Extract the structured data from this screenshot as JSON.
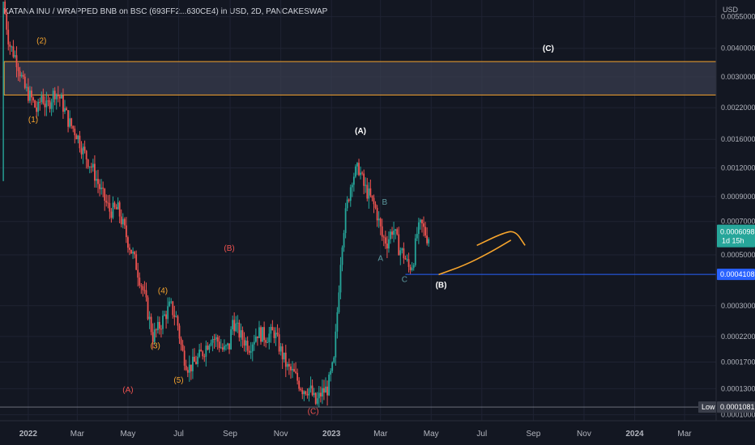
{
  "header": {
    "title": "KATANA INU / WRAPPED BNB on BSC (693FF2...630CE4) in USD, 2D, PANCAKESWAP",
    "currency": "USD"
  },
  "colors": {
    "background": "#131722",
    "grid": "#1f2333",
    "axis_text": "#b2b5be",
    "candle_up": "#26a69a",
    "candle_down": "#ef5350",
    "zone_border": "#f7a52d",
    "zone_fill": "#3b3e50",
    "support_line": "#2962ff",
    "forecast_curve": "#f7a52d",
    "label_orange": "#f7a52d",
    "label_red": "#ef5350",
    "label_white": "#ffffff",
    "label_teal": "#5d9aa0",
    "price_badge": "#26a69a",
    "level_badge": "#2962ff",
    "low_line": "#a0a3ad",
    "low_badge_bg": "#3a3e4a"
  },
  "chart_data": {
    "type": "candlestick",
    "title": "KATANA INU / WRAPPED BNB on BSC (693FF2...630CE4) in USD, 2D, PANCAKESWAP",
    "y_axis": {
      "scale": "log",
      "unit": "USD",
      "ylim": [
        9.81e-05,
        0.0064
      ],
      "ticks": [
        "0.0055000",
        "0.0040000",
        "0.0030000",
        "0.0022000",
        "0.0016000",
        "0.0012000",
        "0.0009000",
        "0.0007000",
        "0.0005000",
        "0.0003000",
        "0.0002200",
        "0.0001700",
        "0.0001300",
        "0.0001000"
      ]
    },
    "x_axis": {
      "tick_labels": [
        "2022",
        "Mar",
        "May",
        "Jul",
        "Sep",
        "Nov",
        "2023",
        "Mar",
        "May",
        "Jul",
        "Sep",
        "Nov",
        "2024",
        "Mar"
      ],
      "tick_dates": [
        "2022-01-01",
        "2022-03-01",
        "2022-05-01",
        "2022-07-01",
        "2022-09-01",
        "2022-11-01",
        "2023-01-01",
        "2023-03-01",
        "2023-05-01",
        "2023-07-01",
        "2023-09-01",
        "2023-11-01",
        "2024-01-01",
        "2024-03-01"
      ],
      "range": [
        "2021-11-28",
        "2024-04-08"
      ]
    },
    "price_path": [
      [
        "2021-12-03",
        0.0064
      ],
      [
        "2021-12-10",
        0.0042
      ],
      [
        "2021-12-20",
        0.0035
      ],
      [
        "2021-12-28",
        0.0027
      ],
      [
        "2022-01-06",
        0.0024
      ],
      [
        "2022-01-13",
        0.0021
      ],
      [
        "2022-01-18",
        0.0025
      ],
      [
        "2022-01-24",
        0.0022
      ],
      [
        "2022-02-03",
        0.0026
      ],
      [
        "2022-02-10",
        0.0024
      ],
      [
        "2022-02-20",
        0.0019
      ],
      [
        "2022-03-01",
        0.0017
      ],
      [
        "2022-03-10",
        0.0014
      ],
      [
        "2022-03-20",
        0.0012
      ],
      [
        "2022-04-01",
        0.00092
      ],
      [
        "2022-04-10",
        0.00078
      ],
      [
        "2022-04-20",
        0.00079
      ],
      [
        "2022-05-01",
        0.00059
      ],
      [
        "2022-05-12",
        0.00045
      ],
      [
        "2022-05-22",
        0.00033
      ],
      [
        "2022-06-01",
        0.00022
      ],
      [
        "2022-06-08",
        0.00024
      ],
      [
        "2022-06-15",
        0.00027
      ],
      [
        "2022-06-22",
        0.0003
      ],
      [
        "2022-06-30",
        0.00026
      ],
      [
        "2022-07-06",
        0.00019
      ],
      [
        "2022-07-14",
        0.00016
      ],
      [
        "2022-07-22",
        0.00017
      ],
      [
        "2022-08-01",
        0.00019
      ],
      [
        "2022-08-10",
        0.00022
      ],
      [
        "2022-08-18",
        0.00021
      ],
      [
        "2022-08-25",
        0.00019
      ],
      [
        "2022-09-01",
        0.0002
      ],
      [
        "2022-09-05",
        0.00026
      ],
      [
        "2022-09-15",
        0.00022
      ],
      [
        "2022-09-25",
        0.0002
      ],
      [
        "2022-10-05",
        0.00023
      ],
      [
        "2022-10-15",
        0.00022
      ],
      [
        "2022-10-25",
        0.00023
      ],
      [
        "2022-11-02",
        0.00019
      ],
      [
        "2022-11-10",
        0.00016
      ],
      [
        "2022-11-18",
        0.00015
      ],
      [
        "2022-11-28",
        0.00013
      ],
      [
        "2022-12-07",
        0.00013
      ],
      [
        "2022-12-14",
        0.000112
      ],
      [
        "2022-12-21",
        0.000125
      ],
      [
        "2022-12-28",
        0.00013
      ],
      [
        "2023-01-05",
        0.00017
      ],
      [
        "2023-01-10",
        0.00032
      ],
      [
        "2023-01-14",
        0.00055
      ],
      [
        "2023-01-20",
        0.0008
      ],
      [
        "2023-01-27",
        0.0011
      ],
      [
        "2023-02-04",
        0.0012
      ],
      [
        "2023-02-10",
        0.001
      ],
      [
        "2023-02-17",
        0.0009
      ],
      [
        "2023-02-25",
        0.00078
      ],
      [
        "2023-03-04",
        0.0006
      ],
      [
        "2023-03-10",
        0.00057
      ],
      [
        "2023-03-17",
        0.00066
      ],
      [
        "2023-03-24",
        0.00054
      ],
      [
        "2023-03-30",
        0.0005
      ],
      [
        "2023-04-05",
        0.00044
      ],
      [
        "2023-04-10",
        0.00046
      ],
      [
        "2023-04-15",
        0.00062
      ],
      [
        "2023-04-20",
        0.00068
      ],
      [
        "2023-04-27",
        0.0006
      ]
    ],
    "highlighted_zone": {
      "low": 0.0025,
      "high": 0.0035,
      "from": "2021-12-03"
    },
    "support_level": {
      "price": 0.0004108,
      "from": "2023-03-31"
    },
    "low_level": {
      "price": 0.0001081
    },
    "forecast": [
      {
        "points": [
          [
            "2023-05-10",
            0.00041
          ],
          [
            "2023-06-10",
            0.00045
          ],
          [
            "2023-07-10",
            0.00051
          ],
          [
            "2023-08-05",
            0.00058
          ]
        ]
      },
      {
        "points": [
          [
            "2023-06-25",
            0.00055
          ],
          [
            "2023-07-25",
            0.00062
          ],
          [
            "2023-08-10",
            0.00064
          ],
          [
            "2023-08-22",
            0.00055
          ]
        ]
      }
    ],
    "current_price": {
      "value": "0.0006098",
      "countdown": "1d 15h"
    },
    "badges": {
      "support": "0.0004108",
      "low_label": "Low",
      "low_value": "0.0001081"
    },
    "wave_labels": [
      {
        "text": "(1)",
        "date": "2022-01-07",
        "price": 0.0019,
        "color": "orange"
      },
      {
        "text": "(2)",
        "date": "2022-01-17",
        "price": 0.0042,
        "color": "orange"
      },
      {
        "text": "(3)",
        "date": "2022-06-03",
        "price": 0.000195,
        "color": "orange"
      },
      {
        "text": "(4)",
        "date": "2022-06-12",
        "price": 0.00034,
        "color": "orange"
      },
      {
        "text": "(5)",
        "date": "2022-07-01",
        "price": 0.000138,
        "color": "orange"
      },
      {
        "text": "(A)",
        "date": "2022-05-01",
        "price": 0.000125,
        "color": "red"
      },
      {
        "text": "(B)",
        "date": "2022-08-31",
        "price": 0.00052,
        "color": "red"
      },
      {
        "text": "(C)",
        "date": "2022-12-10",
        "price": 0.000101,
        "color": "red"
      },
      {
        "text": "(A)",
        "date": "2023-02-05",
        "price": 0.0017,
        "color": "white"
      },
      {
        "text": "(B)",
        "date": "2023-05-13",
        "price": 0.00036,
        "color": "white"
      },
      {
        "text": "(C)",
        "date": "2023-09-19",
        "price": 0.0039,
        "color": "white"
      },
      {
        "text": "A",
        "date": "2023-03-01",
        "price": 0.00047,
        "color": "teal"
      },
      {
        "text": "B",
        "date": "2023-03-06",
        "price": 0.00083,
        "color": "teal"
      },
      {
        "text": "C",
        "date": "2023-03-30",
        "price": 0.00038,
        "color": "teal"
      }
    ]
  }
}
